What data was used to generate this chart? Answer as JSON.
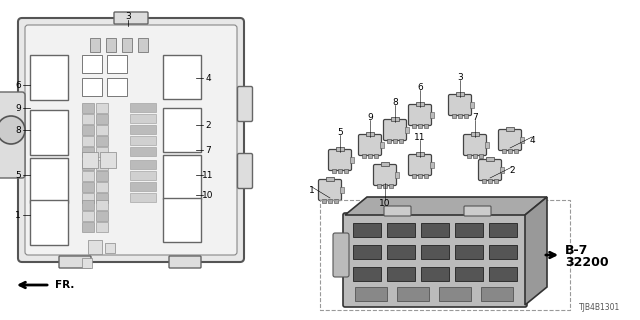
{
  "bg_color": "#ffffff",
  "title_code": "TJB4B1301",
  "fr_label": "FR.",
  "b7_line1": "B-7",
  "b7_line2": "32200",
  "edge_color": "#666666",
  "fill_light": "#eeeeee",
  "fill_mid": "#cccccc",
  "fill_dark": "#999999"
}
